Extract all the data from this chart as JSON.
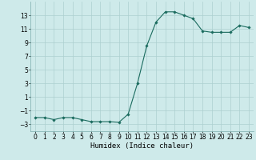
{
  "x": [
    0,
    1,
    2,
    3,
    4,
    5,
    6,
    7,
    8,
    9,
    10,
    11,
    12,
    13,
    14,
    15,
    16,
    17,
    18,
    19,
    20,
    21,
    22,
    23
  ],
  "y": [
    -2,
    -2,
    -2.3,
    -2,
    -2,
    -2.3,
    -2.6,
    -2.6,
    -2.6,
    -2.7,
    -1.5,
    3,
    8.5,
    12,
    13.5,
    13.5,
    13,
    12.5,
    10.7,
    10.5,
    10.5,
    10.5,
    11.5,
    11.2
  ],
  "line_color": "#1a6b5e",
  "marker": "D",
  "marker_size": 1.8,
  "bg_color": "#ceeaea",
  "grid_color": "#acd0d0",
  "xlabel": "Humidex (Indice chaleur)",
  "xlim": [
    -0.5,
    23.5
  ],
  "ylim": [
    -4,
    15
  ],
  "yticks": [
    -3,
    -1,
    1,
    3,
    5,
    7,
    9,
    11,
    13
  ],
  "xticks": [
    0,
    1,
    2,
    3,
    4,
    5,
    6,
    7,
    8,
    9,
    10,
    11,
    12,
    13,
    14,
    15,
    16,
    17,
    18,
    19,
    20,
    21,
    22,
    23
  ],
  "tick_fontsize": 5.5,
  "label_fontsize": 6.5
}
